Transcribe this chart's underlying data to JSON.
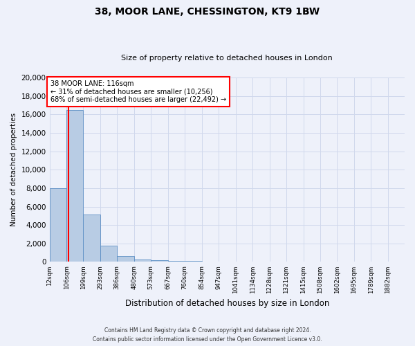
{
  "title1": "38, MOOR LANE, CHESSINGTON, KT9 1BW",
  "title2": "Size of property relative to detached houses in London",
  "xlabel": "Distribution of detached houses by size in London",
  "ylabel": "Number of detached properties",
  "annotation_title": "38 MOOR LANE: 116sqm",
  "annotation_line1": "← 31% of detached houses are smaller (10,256)",
  "annotation_line2": "68% of semi-detached houses are larger (22,492) →",
  "footer1": "Contains HM Land Registry data © Crown copyright and database right 2024.",
  "footer2": "Contains public sector information licensed under the Open Government Licence v3.0.",
  "bar_color": "#b8cce4",
  "bar_edge_color": "#5b8ec4",
  "grid_color": "#d0d8ec",
  "background_color": "#eef1fa",
  "annotation_box_color": "#cc0000",
  "property_line_x": 116,
  "categories": [
    "12sqm",
    "106sqm",
    "199sqm",
    "293sqm",
    "386sqm",
    "480sqm",
    "573sqm",
    "667sqm",
    "760sqm",
    "854sqm",
    "947sqm",
    "1041sqm",
    "1134sqm",
    "1228sqm",
    "1321sqm",
    "1415sqm",
    "1508sqm",
    "1602sqm",
    "1695sqm",
    "1789sqm",
    "1882sqm"
  ],
  "bin_edges": [
    12,
    106,
    199,
    293,
    386,
    480,
    573,
    667,
    760,
    854,
    947,
    1041,
    1134,
    1228,
    1321,
    1415,
    1508,
    1602,
    1695,
    1789,
    1882
  ],
  "values": [
    8000,
    16500,
    5100,
    1750,
    640,
    280,
    175,
    120,
    75,
    0,
    0,
    0,
    0,
    0,
    0,
    0,
    0,
    0,
    0,
    0,
    0
  ],
  "ylim": [
    0,
    20000
  ],
  "yticks": [
    0,
    2000,
    4000,
    6000,
    8000,
    10000,
    12000,
    14000,
    16000,
    18000,
    20000
  ]
}
